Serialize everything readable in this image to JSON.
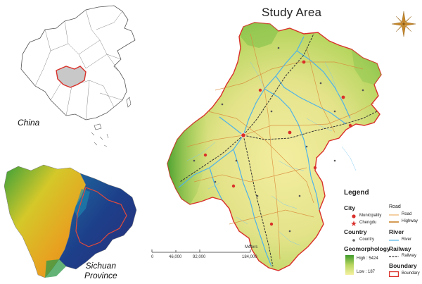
{
  "title": "Study Area",
  "insets": {
    "china_label": "China",
    "sichuan_label_line1": "Sichuan",
    "sichuan_label_line2": "Province"
  },
  "legend": {
    "title": "Legend",
    "city_header": "City",
    "city_items": [
      "Municipality",
      "Chengdu"
    ],
    "country_header": "Country",
    "country_item": "Country",
    "geo_header": "Geomorphology",
    "geo_high": "High : 5424",
    "geo_low": "Low : 187",
    "road_header": "Road",
    "road_items": [
      "Road",
      "Highway"
    ],
    "river_header": "River",
    "river_item": "River",
    "railway_header": "Railway",
    "railway_item": "Railway",
    "boundary_header": "Boundary",
    "boundary_item": "Boundary"
  },
  "scale_bar": {
    "unit": "Meters",
    "ticks": [
      "0",
      "46,000",
      "92,000",
      "184,000"
    ]
  },
  "colors": {
    "boundary": "#d9302a",
    "river": "#4fb3e8",
    "road": "#e8a04a",
    "railway": "#333333",
    "elev_high": "#3f9a2b",
    "elev_low": "#f5f0a0",
    "sichuan_highlight": "#c8c8c8"
  },
  "icons": {
    "compass": "compass-rose-icon"
  }
}
